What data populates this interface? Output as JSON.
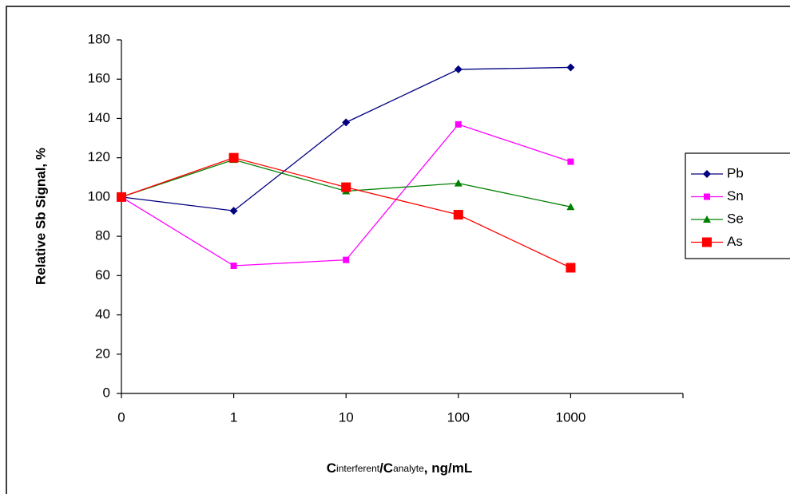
{
  "chart_data": {
    "type": "line",
    "ylabel": "Relative Sb Signal, %",
    "xlabel": [
      "C",
      "interferent",
      "/C",
      "analyte",
      ", ng/mL"
    ],
    "categories": [
      "0",
      "1",
      "10",
      "100",
      "1000",
      null
    ],
    "ylim": [
      0,
      180
    ],
    "yticks": [
      0,
      20,
      40,
      60,
      80,
      100,
      120,
      140,
      160,
      180
    ],
    "grid": false,
    "legend": "right",
    "series": [
      {
        "name": "Pb",
        "color": "#000080",
        "marker": "diamond",
        "marker_size": 5,
        "values": [
          100,
          93,
          138,
          165,
          166,
          null
        ]
      },
      {
        "name": "Sn",
        "color": "#ff00ff",
        "marker": "square",
        "marker_size": 4,
        "values": [
          100,
          65,
          68,
          137,
          118,
          null
        ]
      },
      {
        "name": "Se",
        "color": "#008000",
        "marker": "triangle",
        "marker_size": 5,
        "values": [
          100,
          119,
          103,
          107,
          95,
          null
        ]
      },
      {
        "name": "As",
        "color": "#ff0000",
        "marker": "square",
        "marker_size": 6,
        "values": [
          100,
          120,
          105,
          91,
          64,
          null
        ]
      }
    ]
  }
}
